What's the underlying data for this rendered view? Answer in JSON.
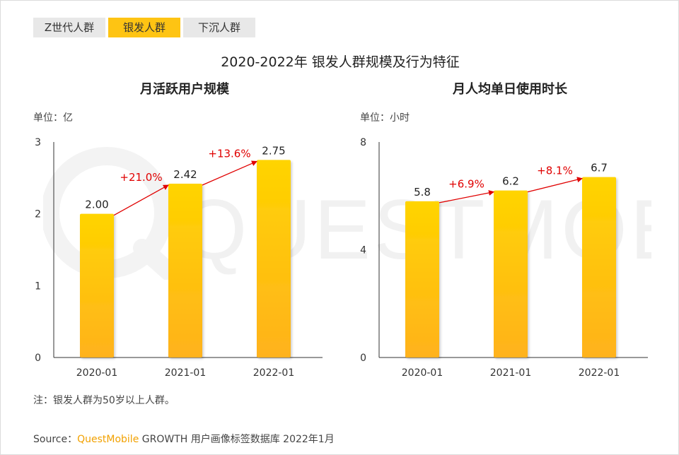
{
  "tabs": [
    {
      "label": "Z世代人群",
      "active": false
    },
    {
      "label": "银发人群",
      "active": true
    },
    {
      "label": "下沉人群",
      "active": false
    }
  ],
  "title": "2020-2022年 银发人群规模及行为特征",
  "note": "注：银发人群为50岁以上人群。",
  "source": {
    "prefix": "Source：",
    "brand": "QuestMobile",
    "rest": " GROWTH 用户画像标签数据库 2022年1月"
  },
  "watermark_text": "QUESTMOBILE",
  "colors": {
    "bar_top": "#ffd400",
    "bar_bottom": "#ffb21c",
    "arrow": "#e00000",
    "axis": "#333333",
    "tab_active": "#fec413",
    "tab_inactive": "#e8e8e8"
  },
  "chart_data": [
    {
      "type": "bar",
      "title": "月活跃用户规模",
      "unit_label": "单位：亿",
      "categories": [
        "2020-01",
        "2021-01",
        "2022-01"
      ],
      "values": [
        2.0,
        2.42,
        2.75
      ],
      "value_labels": [
        "2.00",
        "2.42",
        "2.75"
      ],
      "growth_labels": [
        "+21.0%",
        "+13.6%"
      ],
      "yticks": [
        0,
        1,
        2,
        3
      ],
      "ylim": [
        0,
        3
      ],
      "grid": false,
      "legend": "none"
    },
    {
      "type": "bar",
      "title": "月人均单日使用时长",
      "unit_label": "单位：小时",
      "categories": [
        "2020-01",
        "2021-01",
        "2022-01"
      ],
      "values": [
        5.8,
        6.2,
        6.7
      ],
      "value_labels": [
        "5.8",
        "6.2",
        "6.7"
      ],
      "growth_labels": [
        "+6.9%",
        "+8.1%"
      ],
      "yticks": [
        0,
        4,
        8
      ],
      "ylim": [
        0,
        8
      ],
      "grid": false,
      "legend": "none"
    }
  ]
}
